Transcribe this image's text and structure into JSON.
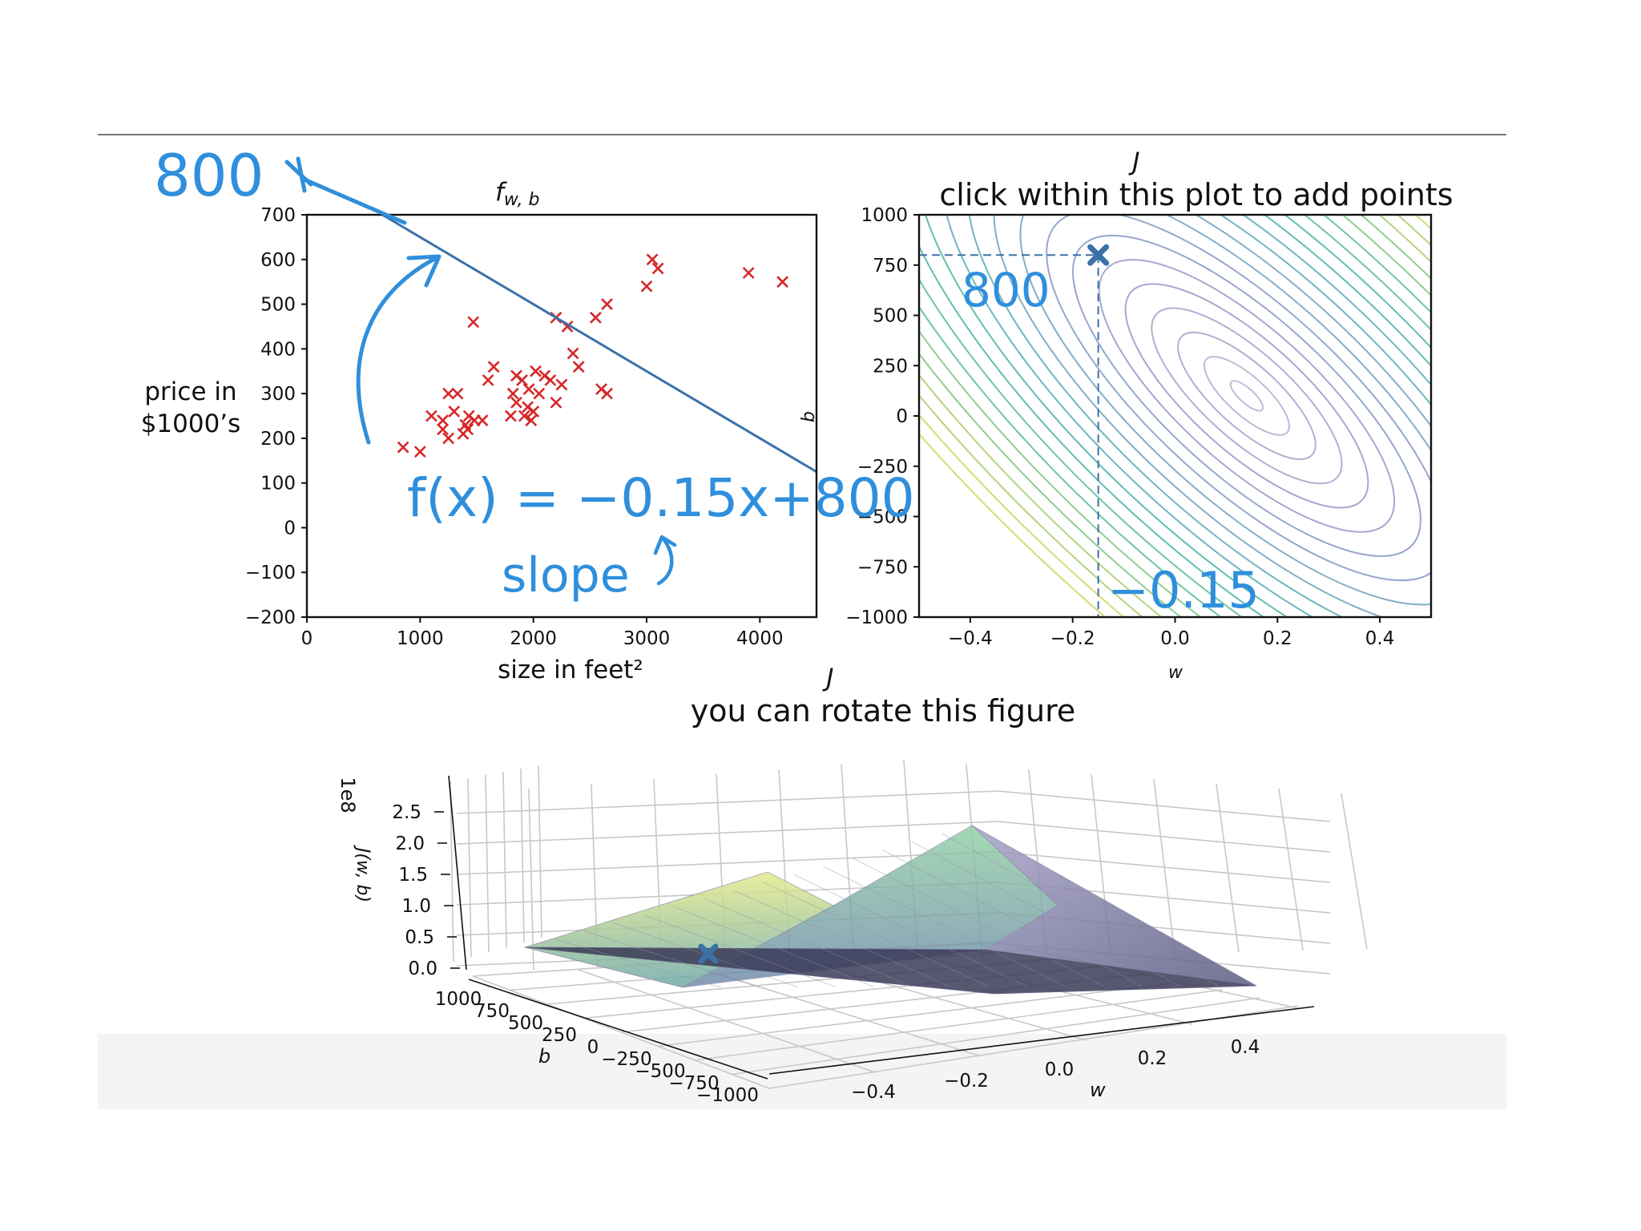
{
  "chart_data": [
    {
      "id": "scatter",
      "type": "scatter",
      "title": "f",
      "title_sub": "w, b",
      "xlabel": "size in feet²",
      "ylabel_line1": "price in",
      "ylabel_line2": "$1000’s",
      "xlim": [
        0,
        4500
      ],
      "ylim": [
        -200,
        700
      ],
      "xticks": [
        0,
        1000,
        2000,
        3000,
        4000
      ],
      "yticks": [
        -200,
        -100,
        0,
        100,
        200,
        300,
        400,
        500,
        600,
        700
      ],
      "points": [
        [
          850,
          180
        ],
        [
          1000,
          170
        ],
        [
          1100,
          250
        ],
        [
          1200,
          240
        ],
        [
          1200,
          220
        ],
        [
          1250,
          300
        ],
        [
          1250,
          200
        ],
        [
          1300,
          260
        ],
        [
          1330,
          300
        ],
        [
          1380,
          210
        ],
        [
          1400,
          230
        ],
        [
          1420,
          220
        ],
        [
          1430,
          250
        ],
        [
          1470,
          460
        ],
        [
          1480,
          240
        ],
        [
          1550,
          240
        ],
        [
          1600,
          330
        ],
        [
          1650,
          360
        ],
        [
          1800,
          250
        ],
        [
          1820,
          300
        ],
        [
          1850,
          280
        ],
        [
          1850,
          340
        ],
        [
          1900,
          330
        ],
        [
          1920,
          250
        ],
        [
          1950,
          270
        ],
        [
          1960,
          310
        ],
        [
          1980,
          240
        ],
        [
          2000,
          260
        ],
        [
          2020,
          350
        ],
        [
          2050,
          300
        ],
        [
          2100,
          340
        ],
        [
          2150,
          330
        ],
        [
          2200,
          280
        ],
        [
          2200,
          470
        ],
        [
          2250,
          320
        ],
        [
          2300,
          450
        ],
        [
          2350,
          390
        ],
        [
          2400,
          360
        ],
        [
          2550,
          470
        ],
        [
          2600,
          310
        ],
        [
          2650,
          300
        ],
        [
          2650,
          500
        ],
        [
          3000,
          540
        ],
        [
          3050,
          600
        ],
        [
          3100,
          580
        ],
        [
          3900,
          570
        ],
        [
          4200,
          550
        ]
      ],
      "marker_color": "#d62728",
      "line": {
        "w": -0.15,
        "b": 800,
        "color": "#3a72a8"
      }
    },
    {
      "id": "contour",
      "type": "contour",
      "title": "J",
      "subtitle": "click within this plot to add points",
      "xlabel": "w",
      "ylabel": "b",
      "xlim": [
        -0.5,
        0.5
      ],
      "ylim": [
        -1000,
        1000
      ],
      "xticks": [
        -0.4,
        -0.2,
        0.0,
        0.2,
        0.4
      ],
      "xtick_labels": [
        "−0.4",
        "−0.2",
        "0.0",
        "0.2",
        "0.4"
      ],
      "yticks": [
        -1000,
        -750,
        -500,
        -250,
        0,
        250,
        500,
        750,
        1000
      ],
      "ytick_labels": [
        "−1000",
        "−750",
        "−500",
        "−250",
        "0",
        "250",
        "500",
        "750",
        "1000"
      ],
      "minimum": {
        "w": 0.14,
        "b": 100
      },
      "selected_point": {
        "w": -0.15,
        "b": 800,
        "color": "#3a72a8"
      }
    },
    {
      "id": "surface",
      "type": "surface3d",
      "title": "J",
      "subtitle": "you can rotate this figure",
      "xlabel": "w",
      "ylabel": "b",
      "zlabel": "J(w, b)",
      "z_scale_label": "1e8",
      "zticks": [
        "0.0",
        "0.5",
        "1.0",
        "1.5",
        "2.0",
        "2.5"
      ],
      "wticks": [
        "−0.4",
        "−0.2",
        "0.0",
        "0.2",
        "0.4"
      ],
      "bticks": [
        "1000",
        "750",
        "500",
        "250",
        "0",
        "−250",
        "−500",
        "−750",
        "−1000"
      ],
      "selected_point": {
        "w": -0.15,
        "b": 800,
        "color": "#3a72a8"
      }
    }
  ],
  "annotations": {
    "intercept": "800",
    "equation": "f(x) = −0.15x+800",
    "slope": "slope",
    "contour_b": "800",
    "contour_w": "−0.15"
  },
  "colors": {
    "annotation": "#2f8fdc",
    "fit_line": "#3a72a8",
    "data_marker": "#d62728"
  }
}
